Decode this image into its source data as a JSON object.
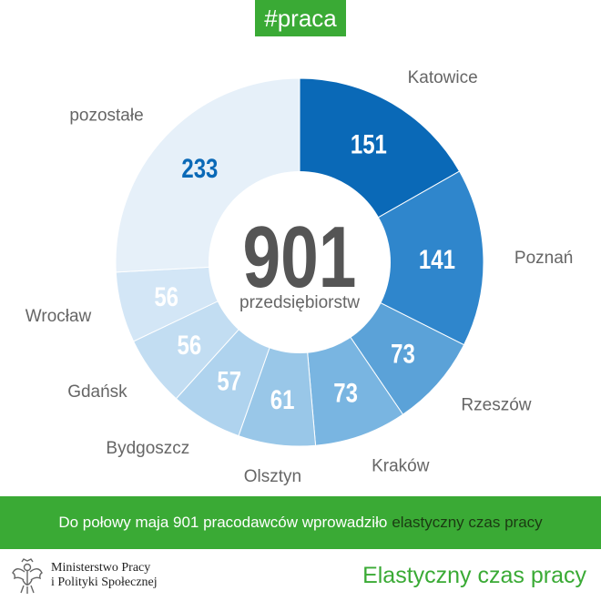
{
  "header": {
    "hashtag": "#praca"
  },
  "chart_data": {
    "type": "pie",
    "center_value": "901",
    "center_label": "przedsiębiorstw",
    "categories": [
      "Katowice",
      "Poznań",
      "Rzeszów",
      "Kraków",
      "Olsztyn",
      "Bydgoszcz",
      "Gdańsk",
      "Wrocław",
      "pozostałe"
    ],
    "values": [
      151,
      141,
      73,
      73,
      61,
      57,
      56,
      56,
      233
    ],
    "colors": [
      "#0a69b7",
      "#2f86cc",
      "#5ba2d8",
      "#79b5e1",
      "#99c7e8",
      "#afd3ee",
      "#c2ddf2",
      "#d3e6f6",
      "#e6f0f9"
    ],
    "value_colors": [
      "#ffffff",
      "#ffffff",
      "#ffffff",
      "#ffffff",
      "#ffffff",
      "#ffffff",
      "#ffffff",
      "#ffffff",
      "#0a69b7"
    ]
  },
  "banner": {
    "text": "Do połowy maja 901 pracodawców wprowadziło",
    "highlight": "elastyczny czas pracy"
  },
  "footer": {
    "ministry_line1": "Ministerstwo Pracy",
    "ministry_line2": "i Polityki Społecznej",
    "topic": "Elastyczny czas pracy"
  }
}
